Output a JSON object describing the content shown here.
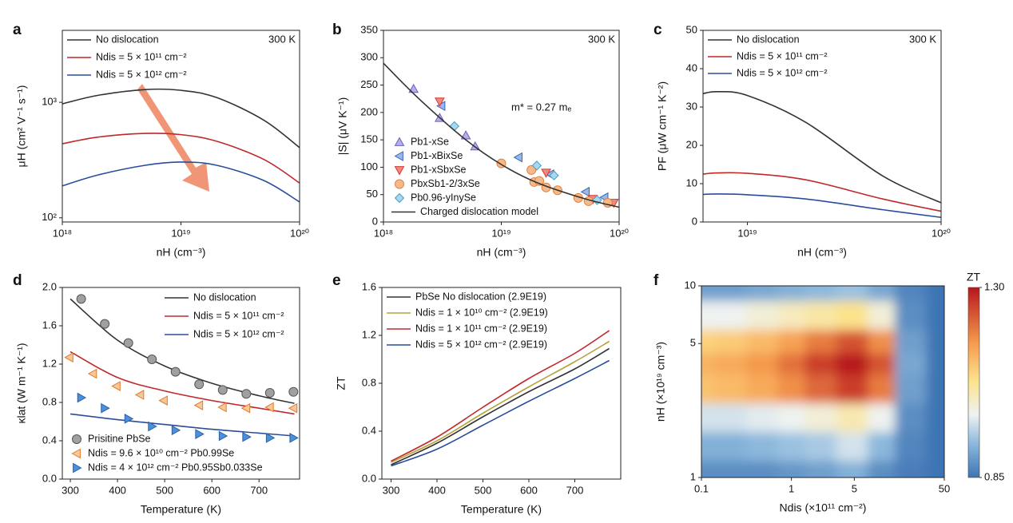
{
  "chart_data": [
    {
      "panel": "a",
      "type": "line",
      "xlabel": "nH (cm⁻³)",
      "ylabel": "μH (cm² V⁻¹ s⁻¹)",
      "xlog": true,
      "ylog": true,
      "xlim": [
        1e+18,
        1e+20
      ],
      "ylim": [
        92,
        4200
      ],
      "xticks": [
        {
          "value": 1e+18,
          "label": "10¹⁸"
        },
        {
          "value": 1e+19,
          "label": "10¹⁹"
        },
        {
          "value": 1e+20,
          "label": "10²⁰"
        }
      ],
      "yticks": [
        {
          "value": 100,
          "label": "10²"
        },
        {
          "value": 1000,
          "label": "10³"
        }
      ],
      "annotations": [
        "300 K"
      ],
      "series": [
        {
          "name": "No dislocation",
          "kind": "line",
          "color": "#333333",
          "x": [
            1e+18,
            2e+18,
            5e+18,
            1e+19,
            2e+19,
            5e+19,
            1e+20
          ],
          "values": [
            970,
            1150,
            1290,
            1270,
            1100,
            700,
            405
          ]
        },
        {
          "name": "Ndis = 5 × 10¹¹ cm⁻²",
          "kind": "line",
          "color": "#c0282a",
          "x": [
            1e+18,
            2e+18,
            5e+18,
            1e+19,
            2e+19,
            5e+19,
            1e+20
          ],
          "values": [
            438,
            500,
            538,
            525,
            460,
            320,
            200
          ]
        },
        {
          "name": "Ndis = 5 × 10¹² cm⁻²",
          "kind": "line",
          "color": "#2a4d9b",
          "x": [
            1e+18,
            2e+18,
            5e+18,
            1e+19,
            2e+19,
            5e+19,
            1e+20
          ],
          "values": [
            189,
            235,
            285,
            304,
            285,
            210,
            137
          ]
        }
      ]
    },
    {
      "panel": "b",
      "type": "scatter",
      "xlabel": "nH (cm⁻³)",
      "ylabel": "|S| (μV K⁻¹)",
      "xlog": true,
      "ylog": false,
      "xlim": [
        1e+18,
        1e+20
      ],
      "ylim": [
        0,
        350
      ],
      "xticks": [
        {
          "value": 1e+18,
          "label": "10¹⁸"
        },
        {
          "value": 1e+19,
          "label": "10¹⁹"
        },
        {
          "value": 1e+20,
          "label": "10²⁰"
        }
      ],
      "yticks": [
        0,
        50,
        100,
        150,
        200,
        250,
        300,
        350
      ],
      "annotations": [
        "300 K",
        "m* = 0.27 mₑ"
      ],
      "series": [
        {
          "name": "Pb1-xSe",
          "kind": "scatter",
          "marker": "triangle-up",
          "color": "#b7b0e8",
          "edgecolor": "#6a5fc0",
          "x": [
            1.8e+18,
            3e+18,
            5e+18,
            6e+18
          ],
          "values": [
            243,
            190,
            158,
            138
          ]
        },
        {
          "name": "Pb1-xBixSe",
          "kind": "scatter",
          "marker": "triangle-left",
          "color": "#9ab8e8",
          "edgecolor": "#3a66b8",
          "x": [
            3.1e+18,
            1.4e+19,
            2.6e+19,
            5.2e+19,
            7.5e+19
          ],
          "values": [
            212,
            118,
            87,
            55,
            45
          ]
        },
        {
          "name": "Pb1-xSbxSe",
          "kind": "scatter",
          "marker": "triangle-down",
          "color": "#f08a80",
          "edgecolor": "#d03a30",
          "x": [
            3e+18,
            2.4e+19,
            6e+19,
            9e+19
          ],
          "values": [
            220,
            90,
            42,
            35
          ]
        },
        {
          "name": "PbxSb1-2/3xSe",
          "kind": "scatter",
          "marker": "circle",
          "color": "#f7b98a",
          "edgecolor": "#e08040",
          "x": [
            1e+19,
            1.8e+19,
            1.9e+19,
            2.1e+19,
            2.4e+19,
            3e+19,
            4.5e+19,
            5.5e+19,
            8e+19
          ],
          "values": [
            107,
            95,
            73,
            75,
            63,
            58,
            44,
            38,
            35
          ]
        },
        {
          "name": "Pb0.96-yInySe",
          "kind": "scatter",
          "marker": "diamond",
          "color": "#a9d8ee",
          "edgecolor": "#4a9cc8",
          "x": [
            4e+18,
            2e+19,
            2.8e+19,
            6.5e+19
          ],
          "values": [
            175,
            103,
            85,
            40
          ]
        },
        {
          "name": "Charged dislocation model",
          "kind": "line",
          "color": "#333333",
          "x": [
            1e+18,
            2e+18,
            5e+18,
            1e+19,
            2e+19,
            5e+19,
            1e+20
          ],
          "values": [
            290,
            225,
            150,
            105,
            72,
            43,
            27
          ]
        }
      ]
    },
    {
      "panel": "c",
      "type": "line",
      "xlabel": "nH (cm⁻³)",
      "ylabel": "PF (μW cm⁻¹ K⁻²)",
      "xlog": true,
      "ylog": false,
      "xlim": [
        5.9e+18,
        1e+20
      ],
      "ylim": [
        0,
        50
      ],
      "xticks": [
        {
          "value": 1e+19,
          "label": "10¹⁹"
        },
        {
          "value": 1e+20,
          "label": "10²⁰"
        }
      ],
      "yticks": [
        0,
        10,
        20,
        30,
        40,
        50
      ],
      "annotations": [
        "300 K"
      ],
      "series": [
        {
          "name": "No dislocation",
          "kind": "line",
          "color": "#333333",
          "x": [
            5.9e+18,
            7e+18,
            1e+19,
            2e+19,
            5e+19,
            1e+20
          ],
          "values": [
            33.5,
            34,
            33,
            26,
            12,
            5
          ]
        },
        {
          "name": "Ndis = 5 × 10¹¹ cm⁻²",
          "kind": "line",
          "color": "#c0282a",
          "x": [
            5.9e+18,
            7e+18,
            1e+19,
            2e+19,
            5e+19,
            1e+20
          ],
          "values": [
            12.5,
            12.8,
            12.7,
            11,
            6,
            2.8
          ]
        },
        {
          "name": "Ndis = 5 × 10¹² cm⁻²",
          "kind": "line",
          "color": "#2a4d9b",
          "x": [
            5.9e+18,
            7e+18,
            1e+19,
            2e+19,
            5e+19,
            1e+20
          ],
          "values": [
            7.2,
            7.3,
            7.1,
            6,
            3.2,
            1.2
          ]
        }
      ]
    },
    {
      "panel": "d",
      "type": "scatter",
      "xlabel": "Temperature (K)",
      "ylabel": "κlat (W m⁻¹ K⁻¹)",
      "xlog": false,
      "ylog": false,
      "xlim": [
        283,
        786
      ],
      "ylim": [
        0,
        2
      ],
      "xticks": [
        300,
        400,
        500,
        600,
        700
      ],
      "yticks": [
        {
          "value": 0,
          "label": "0.0"
        },
        0.4,
        0.8,
        1.2,
        1.6,
        {
          "value": 2,
          "label": "2.0"
        }
      ],
      "annotations": [],
      "series": [
        {
          "name": "No dislocation",
          "kind": "line",
          "color": "#333333",
          "x": [
            300,
            400,
            500,
            600,
            700,
            775
          ],
          "values": [
            1.88,
            1.45,
            1.18,
            1.0,
            0.87,
            0.79
          ]
        },
        {
          "name": "Ndis = 5 × 10¹¹ cm⁻²",
          "kind": "line",
          "color": "#c0282a",
          "x": [
            300,
            400,
            500,
            600,
            700,
            775
          ],
          "values": [
            1.33,
            1.06,
            0.92,
            0.82,
            0.74,
            0.68
          ]
        },
        {
          "name": "Ndis = 5 × 10¹² cm⁻²",
          "kind": "line",
          "color": "#2a4d9b",
          "x": [
            300,
            400,
            500,
            600,
            700,
            775
          ],
          "values": [
            0.68,
            0.62,
            0.57,
            0.52,
            0.48,
            0.45
          ]
        },
        {
          "name": "Prisitine PbSe",
          "kind": "scatter",
          "marker": "circle",
          "color": "#a0a0a0",
          "edgecolor": "#555555",
          "x": [
            323,
            373,
            423,
            473,
            523,
            573,
            623,
            673,
            723,
            773
          ],
          "values": [
            1.88,
            1.62,
            1.42,
            1.25,
            1.12,
            0.99,
            0.93,
            0.89,
            0.9,
            0.91
          ]
        },
        {
          "name": "Ndis = 9.6 × 10¹⁰ cm⁻² Pb0.99Se",
          "kind": "scatter",
          "marker": "triangle-left",
          "color": "#f7c99a",
          "edgecolor": "#e07a2a",
          "x": [
            298,
            348,
            398,
            448,
            498,
            573,
            623,
            673,
            723,
            773
          ],
          "values": [
            1.27,
            1.1,
            0.97,
            0.88,
            0.82,
            0.77,
            0.75,
            0.74,
            0.75,
            0.74
          ]
        },
        {
          "name": "Ndis = 4 × 10¹² cm⁻² Pb0.95Sb0.033Se",
          "kind": "scatter",
          "marker": "triangle-right",
          "color": "#4e8fd9",
          "edgecolor": "#2a5fa8",
          "x": [
            323,
            373,
            423,
            473,
            523,
            573,
            623,
            673,
            723,
            773
          ],
          "values": [
            0.85,
            0.74,
            0.63,
            0.55,
            0.51,
            0.47,
            0.45,
            0.44,
            0.43,
            0.43
          ]
        }
      ]
    },
    {
      "panel": "e",
      "type": "line",
      "xlabel": "Temperature (K)",
      "ylabel": "ZT",
      "xlog": false,
      "ylog": false,
      "xlim": [
        280,
        800
      ],
      "ylim": [
        0,
        1.6
      ],
      "xticks": [
        300,
        400,
        500,
        600,
        700
      ],
      "yticks": [
        {
          "value": 0,
          "label": "0.0"
        },
        0.4,
        0.8,
        1.2,
        1.6
      ],
      "annotations": [],
      "series": [
        {
          "name": "PbSe No dislocation (2.9E19)",
          "kind": "line",
          "color": "#333333",
          "x": [
            300,
            400,
            500,
            600,
            700,
            775
          ],
          "values": [
            0.12,
            0.3,
            0.52,
            0.73,
            0.92,
            1.09
          ]
        },
        {
          "name": "Ndis = 1 × 10¹⁰ cm⁻²  (2.9E19)",
          "kind": "line",
          "color": "#b5a23a",
          "x": [
            300,
            400,
            500,
            600,
            700,
            775
          ],
          "values": [
            0.14,
            0.32,
            0.55,
            0.77,
            0.98,
            1.15
          ]
        },
        {
          "name": "Ndis = 1 × 10¹¹ cm⁻²  (2.9E19)",
          "kind": "line",
          "color": "#c0282a",
          "x": [
            300,
            400,
            500,
            600,
            700,
            775
          ],
          "values": [
            0.15,
            0.35,
            0.6,
            0.84,
            1.05,
            1.24
          ]
        },
        {
          "name": "Ndis = 5 × 10¹² cm⁻²  (2.9E19)",
          "kind": "line",
          "color": "#2a4d9b",
          "x": [
            300,
            400,
            500,
            600,
            700,
            775
          ],
          "values": [
            0.11,
            0.25,
            0.45,
            0.65,
            0.84,
            0.99
          ]
        }
      ]
    },
    {
      "panel": "f",
      "type": "heatmap",
      "xlabel": "Ndis (×10¹¹ cm⁻²)",
      "ylabel": "nH (×10¹⁹ cm⁻³)",
      "xlog": true,
      "ylog": true,
      "xlim": [
        0.1,
        50
      ],
      "ylim": [
        1,
        10
      ],
      "xticks": [
        0.1,
        1,
        5,
        50
      ],
      "yticks": [
        1,
        5,
        10
      ],
      "colorbar_label": "ZT",
      "clim": [
        0.85,
        1.3
      ],
      "cticks": [
        0.85,
        {
          "value": 1.3,
          "label": "1.30"
        }
      ],
      "x": [
        0.1,
        0.2,
        0.5,
        1,
        2,
        5,
        10,
        20,
        50
      ],
      "y": [
        1,
        1.5,
        2,
        3,
        4,
        5,
        7,
        10
      ],
      "z": [
        [
          0.88,
          0.88,
          0.88,
          0.89,
          0.9,
          0.92,
          0.88,
          0.86,
          0.85
        ],
        [
          0.92,
          0.92,
          0.93,
          0.94,
          0.95,
          0.98,
          0.93,
          0.87,
          0.85
        ],
        [
          0.98,
          0.98,
          0.99,
          1.0,
          1.02,
          1.05,
          1.0,
          0.88,
          0.85
        ],
        [
          1.12,
          1.13,
          1.15,
          1.18,
          1.22,
          1.26,
          1.2,
          0.9,
          0.85
        ],
        [
          1.14,
          1.15,
          1.17,
          1.21,
          1.26,
          1.3,
          1.24,
          0.91,
          0.85
        ],
        [
          1.1,
          1.11,
          1.13,
          1.16,
          1.2,
          1.24,
          1.18,
          0.9,
          0.85
        ],
        [
          1.0,
          1.0,
          1.02,
          1.04,
          1.06,
          1.08,
          1.02,
          0.88,
          0.85
        ],
        [
          0.9,
          0.9,
          0.91,
          0.92,
          0.93,
          0.94,
          0.91,
          0.87,
          0.85
        ]
      ]
    }
  ]
}
